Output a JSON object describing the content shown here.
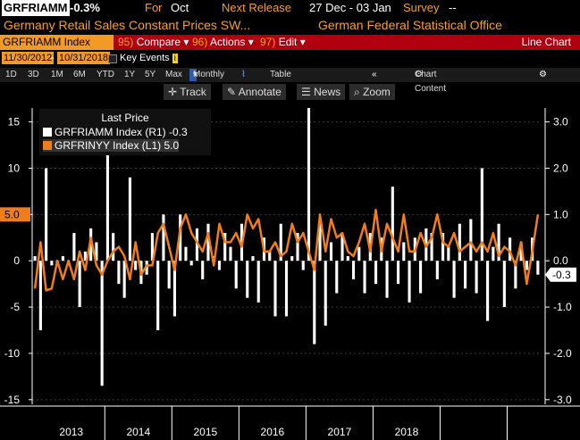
{
  "header": {
    "ticker": "GRFRIAMM",
    "change": "-0.3%",
    "for_label": "For",
    "period": "Oct",
    "next_release_label": "Next Release",
    "next_release": "27 Dec - 03 Jan",
    "survey_label": "Survey",
    "survey_value": "--",
    "description": "Germany Retail Sales Constant Prices SW...",
    "source": "German Federal Statistical Office"
  },
  "toolbar": {
    "ticker_field": "GRFRIAMM Index",
    "compare_num": "95)",
    "compare_label": "Compare",
    "actions_num": "96)",
    "actions_label": "Actions",
    "edit_num": "97)",
    "edit_label": "Edit",
    "chart_type": "Line Chart"
  },
  "daterange": {
    "start": "11/30/2012",
    "end": "10/31/2018",
    "key_events": "Key Events",
    "info": "i"
  },
  "periods": {
    "items": [
      "1D",
      "3D",
      "1M",
      "6M",
      "YTD",
      "1Y",
      "5Y",
      "Max"
    ],
    "frequency": "Monthly",
    "table_label": "Table",
    "chart_content": "Chart Content"
  },
  "tools": {
    "track": "Track",
    "annotate": "Annotate",
    "news": "News",
    "zoom": "Zoom"
  },
  "colors": {
    "orange": "#f07d1a",
    "bars": "#ffffff",
    "toolbar_red": "#b0000f",
    "ticker_orange": "#f39a26"
  },
  "legend": {
    "title": "Last Price",
    "series1": "GRFRIAMM Index  (R1) -0.3",
    "series2": "GRFRINYY Index  (L1)    5.0"
  },
  "chart_data": {
    "type": "bar+line",
    "x_labels": [
      "2013",
      "2014",
      "2015",
      "2016",
      "2017",
      "2018"
    ],
    "left_axis": {
      "ticks": [
        -15,
        -10,
        -5,
        0,
        5,
        10,
        15
      ],
      "range": [
        -15.5,
        16.5
      ],
      "last_value_label": "5.0"
    },
    "right_axis": {
      "ticks": [
        "-3.0",
        "-2.0",
        "-1.0",
        "0.0",
        "1.0",
        "2.0",
        "3.0"
      ],
      "range": [
        -3.1,
        3.3
      ],
      "last_value_label": "-0.3"
    },
    "series": [
      {
        "name": "GRFRIAMM Index",
        "axis": "right",
        "kind": "bar",
        "values": [
          0.1,
          -1.5,
          2.0,
          -0.1,
          -0.1,
          0.1,
          -0.1,
          0.6,
          -1.0,
          0.2,
          0.7,
          0.4,
          -2.7,
          2.4,
          0.6,
          -0.5,
          -0.8,
          1.8,
          -0.2,
          -0.5,
          -0.3,
          0.6,
          -1.5,
          1.0,
          -0.6,
          -1.2,
          1.0,
          0.3,
          -0.1,
          0.7,
          -0.4,
          0.8,
          0.1,
          -0.2,
          0.6,
          0.3,
          -0.6,
          0.8,
          -0.8,
          0.1,
          -0.9,
          0.5,
          0.2,
          -1.2,
          0.8,
          -1.2,
          0.1,
          0.6,
          -0.2,
          3.3,
          -1.8,
          0.9,
          -1.4,
          0.4,
          -0.7,
          0.6,
          0.1,
          -0.4,
          0.3,
          -0.7,
          0.6,
          -0.5,
          0.5,
          -0.8,
          1.6,
          -0.5,
          0.4,
          -0.9,
          0.5,
          -0.7,
          0.7,
          0.6,
          -0.4,
          0.6,
          0.3,
          -0.8,
          0.8,
          -0.6,
          0.9,
          -0.7,
          2.0,
          -1.3,
          0.3,
          0.8,
          -1.0,
          0.5,
          -0.6,
          0.4,
          -0.2,
          0.5,
          -0.3
        ]
      },
      {
        "name": "GRFRINYY Index",
        "axis": "left",
        "kind": "line",
        "values": [
          -3.0,
          2.0,
          -3.2,
          -3.0,
          0.0,
          -2.0,
          0.0,
          -2.0,
          1.0,
          -1.0,
          2.5,
          -0.5,
          -1.5,
          0.0,
          1.0,
          1.5,
          0.5,
          -2.0,
          2.0,
          -1.5,
          -0.5,
          -0.5,
          3.0,
          4.0,
          1.5,
          -1.0,
          3.5,
          5.0,
          3.0,
          2.0,
          1.0,
          3.0,
          -0.5,
          4.0,
          2.0,
          2.0,
          3.0,
          1.5,
          5.0,
          3.5,
          4.5,
          1.0,
          1.0,
          2.0,
          0.5,
          1.0,
          4.0,
          2.0,
          3.0,
          1.0,
          -1.0,
          5.0,
          1.0,
          4.5,
          2.5,
          3.0,
          1.0,
          0.5,
          2.0,
          4.0,
          1.0,
          5.5,
          1.0,
          4.0,
          2.5,
          1.0,
          5.0,
          1.0,
          1.0,
          3.0,
          1.5,
          2.5,
          5.0,
          2.0,
          1.5,
          3.0,
          1.0,
          1.5,
          2.0,
          1.0,
          2.0,
          1.0,
          3.0,
          0.5,
          1.5,
          1.0,
          -0.5,
          2.0,
          -2.5,
          1.0,
          5.0
        ]
      }
    ]
  }
}
